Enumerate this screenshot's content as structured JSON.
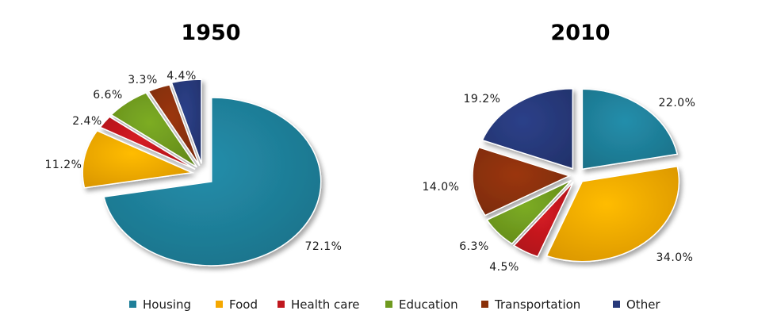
{
  "chart_data": [
    {
      "type": "pie",
      "title": "1950",
      "categories": [
        "Housing",
        "Food",
        "Health care",
        "Education",
        "Transportation",
        "Other"
      ],
      "values": [
        72.1,
        11.2,
        2.4,
        6.6,
        3.3,
        4.4
      ],
      "value_labels": [
        "72.1%",
        "11.2%",
        "2.4%",
        "6.6%",
        "3.3%",
        "4.4%"
      ],
      "exploded": true
    },
    {
      "type": "pie",
      "title": "2010",
      "categories": [
        "Housing",
        "Food",
        "Health care",
        "Education",
        "Transportation",
        "Other"
      ],
      "values": [
        22.0,
        34.0,
        4.5,
        6.3,
        14.0,
        19.2
      ],
      "value_labels": [
        "22.0%",
        "34.0%",
        "4.5%",
        "6.3%",
        "14.0%",
        "19.2%"
      ],
      "exploded": true
    }
  ],
  "legend": {
    "position": "bottom",
    "items": [
      {
        "label": "Housing",
        "color": "#1f7f99"
      },
      {
        "label": "Food",
        "color": "#f5a800"
      },
      {
        "label": "Health care",
        "color": "#c0181e"
      },
      {
        "label": "Education",
        "color": "#6f9a1f"
      },
      {
        "label": "Transportation",
        "color": "#8a3008"
      },
      {
        "label": "Other",
        "color": "#27397a"
      }
    ]
  }
}
